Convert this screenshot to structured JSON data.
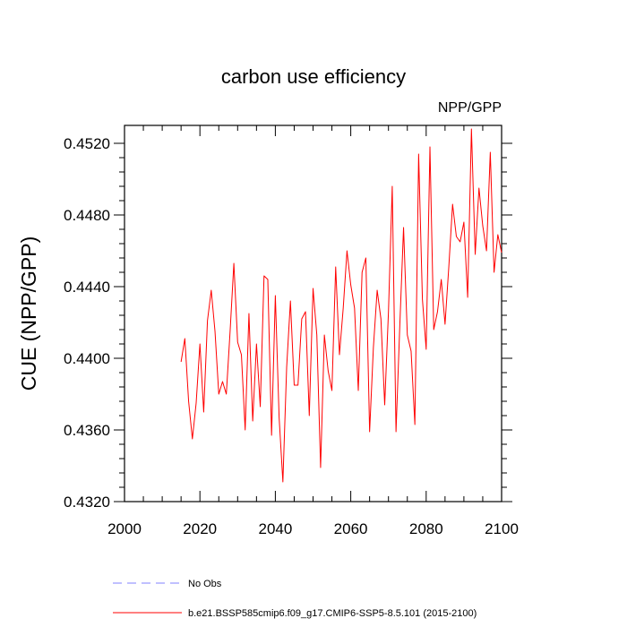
{
  "chart_data": {
    "type": "line",
    "title": "carbon use efficiency",
    "right_subtitle": "NPP/GPP",
    "xlabel": "",
    "ylabel": "CUE  (NPP/GPP)",
    "xlim": [
      2000,
      2100
    ],
    "ylim": [
      0.432,
      0.453
    ],
    "x_ticks": [
      2000,
      2020,
      2040,
      2060,
      2080,
      2100
    ],
    "x_tick_labels": [
      "2000",
      "2020",
      "2040",
      "2060",
      "2080",
      "2100"
    ],
    "y_ticks": [
      0.432,
      0.436,
      0.44,
      0.444,
      0.448,
      0.452
    ],
    "y_tick_labels": [
      "0.4320",
      "0.4360",
      "0.4400",
      "0.4440",
      "0.4480",
      "0.4520"
    ],
    "grid": false,
    "legend_position": "bottom",
    "series": [
      {
        "name": "b.e21.BSSP585cmip6.f09_g17.CMIP6-SSP5-8.5.101 (2015-2100)",
        "color": "#ff0000",
        "dash": "solid",
        "x": [
          2015,
          2016,
          2017,
          2018,
          2019,
          2020,
          2021,
          2022,
          2023,
          2024,
          2025,
          2026,
          2027,
          2028,
          2029,
          2030,
          2031,
          2032,
          2033,
          2034,
          2035,
          2036,
          2037,
          2038,
          2039,
          2040,
          2041,
          2042,
          2043,
          2044,
          2045,
          2046,
          2047,
          2048,
          2049,
          2050,
          2051,
          2052,
          2053,
          2054,
          2055,
          2056,
          2057,
          2058,
          2059,
          2060,
          2061,
          2062,
          2063,
          2064,
          2065,
          2066,
          2067,
          2068,
          2069,
          2070,
          2071,
          2072,
          2073,
          2074,
          2075,
          2076,
          2077,
          2078,
          2079,
          2080,
          2081,
          2082,
          2083,
          2084,
          2085,
          2086,
          2087,
          2088,
          2089,
          2090,
          2091,
          2092,
          2093,
          2094,
          2095,
          2096,
          2097,
          2098,
          2099,
          2100
        ],
        "values": [
          0.4398,
          0.4411,
          0.4376,
          0.4355,
          0.4375,
          0.4408,
          0.437,
          0.4421,
          0.4438,
          0.4415,
          0.438,
          0.4387,
          0.438,
          0.4415,
          0.4453,
          0.4409,
          0.4402,
          0.436,
          0.4425,
          0.4365,
          0.4408,
          0.4373,
          0.4446,
          0.4444,
          0.4357,
          0.4435,
          0.4367,
          0.4331,
          0.4395,
          0.4432,
          0.4385,
          0.4385,
          0.4422,
          0.4426,
          0.4368,
          0.4439,
          0.4413,
          0.4339,
          0.4413,
          0.4393,
          0.4382,
          0.4451,
          0.4402,
          0.4428,
          0.446,
          0.4441,
          0.4428,
          0.4382,
          0.4448,
          0.4456,
          0.4359,
          0.4406,
          0.4438,
          0.4422,
          0.4374,
          0.4426,
          0.4496,
          0.4359,
          0.4418,
          0.4473,
          0.4413,
          0.4404,
          0.4363,
          0.4514,
          0.4433,
          0.4405,
          0.4518,
          0.4416,
          0.4426,
          0.4444,
          0.4419,
          0.4451,
          0.4486,
          0.4468,
          0.4465,
          0.4476,
          0.4434,
          0.4528,
          0.4458,
          0.4495,
          0.4474,
          0.446,
          0.4515,
          0.4448,
          0.4469,
          0.4459
        ]
      }
    ],
    "legend": [
      {
        "label": "No Obs",
        "color": "#8080ff",
        "dash": "dashed"
      },
      {
        "label": "b.e21.BSSP585cmip6.f09_g17.CMIP6-SSP5-8.5.101 (2015-2100)",
        "color": "#ff0000",
        "dash": "solid"
      }
    ]
  }
}
